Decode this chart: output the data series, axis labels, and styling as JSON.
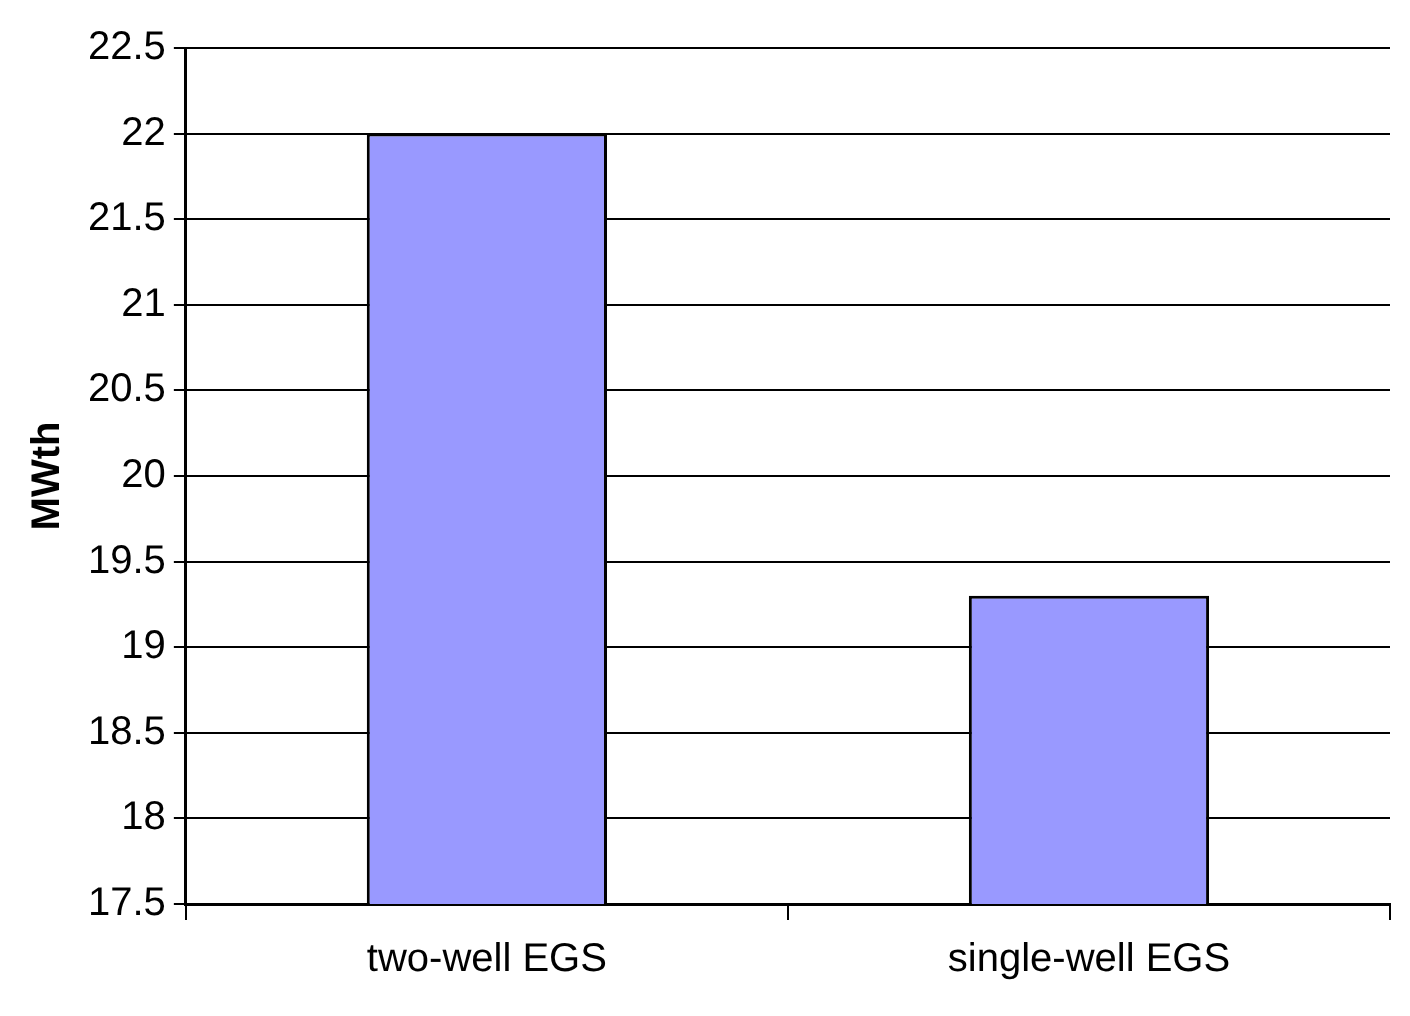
{
  "chart_data": {
    "type": "bar",
    "ylabel": "MWth",
    "categories": [
      "two-well EGS",
      "single-well EGS"
    ],
    "values": [
      22,
      19.3
    ],
    "color": "#9999ff",
    "ylim": [
      17.5,
      22.5
    ],
    "yticks": [
      17.5,
      18,
      18.5,
      19,
      19.5,
      20,
      20.5,
      21,
      21.5,
      22,
      22.5
    ],
    "grid": "y",
    "legend": false
  }
}
